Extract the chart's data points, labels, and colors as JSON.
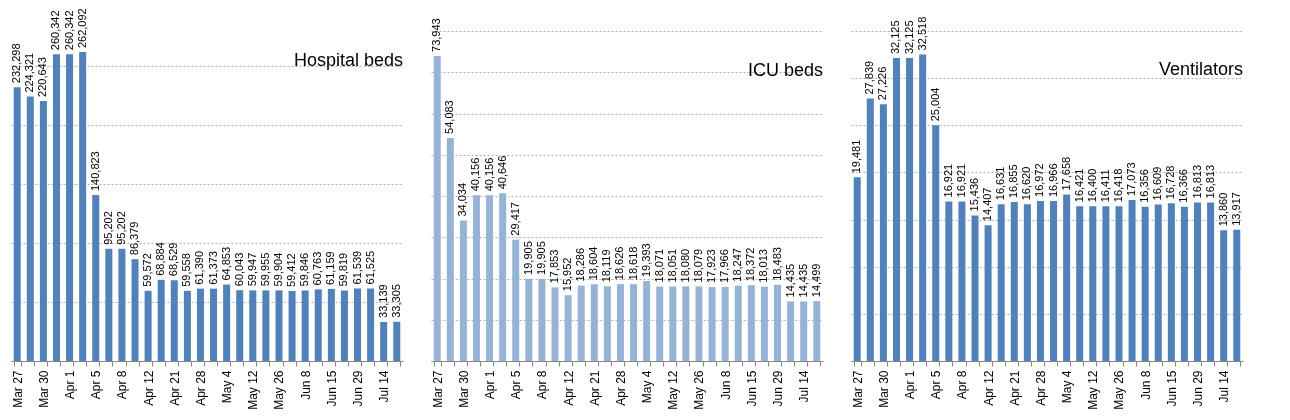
{
  "chart_data": [
    {
      "type": "bar",
      "title": "Hospital beds",
      "categories": [
        "Mar 27",
        null,
        "Mar 30",
        null,
        "Apr 1",
        null,
        "Apr 5",
        null,
        "Apr 8",
        null,
        "Apr 12",
        null,
        "Apr 21",
        null,
        "Apr 28",
        null,
        "May 4",
        null,
        "May 12",
        null,
        "May 26",
        null,
        "Jun 8",
        null,
        "Jun 15",
        null,
        "Jun 29",
        null,
        "Jul 14",
        null
      ],
      "series": [
        {
          "color": "#4f81bd",
          "values": [
            232298,
            224321,
            220643,
            260342,
            260342,
            262092,
            140823,
            95202,
            95202,
            86379,
            59572,
            68884,
            68529,
            59558,
            61390,
            61373,
            64853,
            60043,
            59947,
            59955,
            59904,
            59412,
            59846,
            60763,
            61159,
            59819,
            61539,
            61525,
            33139,
            33305
          ],
          "value_labels": [
            "232,298",
            "224,321",
            "220,643",
            "260,342",
            "260,342",
            "262,092",
            "140,823",
            "95,202",
            "95,202",
            "86,379",
            "59,572",
            "68,884",
            "68,529",
            "59,558",
            "61,390",
            "61,373",
            "64,853",
            "60,043",
            "59,947",
            "59,955",
            "59,904",
            "59,412",
            "59,846",
            "60,763",
            "61,159",
            "59,819",
            "61,539",
            "61,525",
            "33,139",
            "33,305"
          ]
        }
      ],
      "tick_labels": "x",
      "grid": "y"
    },
    {
      "type": "bar",
      "title": "ICU beds",
      "categories": [
        "Mar 27",
        null,
        "Mar 30",
        null,
        "Apr 1",
        null,
        "Apr 5",
        null,
        "Apr 8",
        null,
        "Apr 12",
        null,
        "Apr 21",
        null,
        "Apr 28",
        null,
        "May 4",
        null,
        "May 12",
        null,
        "May 26",
        null,
        "Jun 8",
        null,
        "Jun 15",
        null,
        "Jun 29",
        null,
        "Jul 14",
        null
      ],
      "series": [
        {
          "color": "#95b3d7",
          "values": [
            73943,
            54083,
            34034,
            40156,
            40156,
            40646,
            29417,
            19905,
            19905,
            17853,
            15952,
            18286,
            18604,
            18119,
            18626,
            18618,
            19393,
            18071,
            18051,
            18080,
            18079,
            17923,
            17966,
            18247,
            18372,
            18013,
            18483,
            14435,
            14435,
            14499
          ],
          "value_labels": [
            "73,943",
            "54,083",
            "34,034",
            "40,156",
            "40,156",
            "40,646",
            "29,417",
            "19,905",
            "19,905",
            "17,853",
            "15,952",
            "18,286",
            "18,604",
            "18,119",
            "18,626",
            "18,618",
            "19,393",
            "18,071",
            "18,051",
            "18,080",
            "18,079",
            "17,923",
            "17,966",
            "18,247",
            "18,372",
            "18,013",
            "18,483",
            "14,435",
            "14,435",
            "14,499"
          ]
        }
      ],
      "tick_labels": "x",
      "grid": "y"
    },
    {
      "type": "bar",
      "title": "Ventilators",
      "categories": [
        "Mar 27",
        null,
        "Mar 30",
        null,
        "Apr 1",
        null,
        "Apr 5",
        null,
        "Apr 8",
        null,
        "Apr 12",
        null,
        "Apr 21",
        null,
        "Apr 28",
        null,
        "May 4",
        null,
        "May 12",
        null,
        "May 26",
        null,
        "Jun 8",
        null,
        "Jun 15",
        null,
        "Jun 29",
        null,
        "Jul 14",
        null
      ],
      "series": [
        {
          "color": "#4f81bd",
          "values": [
            19481,
            27839,
            27226,
            32125,
            32125,
            32518,
            25004,
            16921,
            16921,
            15436,
            14407,
            16631,
            16855,
            16620,
            16972,
            16966,
            17658,
            16421,
            16400,
            16411,
            16418,
            17073,
            16356,
            16609,
            16728,
            16366,
            16813,
            16813,
            13860,
            13917
          ],
          "value_labels": [
            "19,481",
            "27,839",
            "27,226",
            "32,125",
            "32,125",
            "32,518",
            "25,004",
            "16,921",
            "16,921",
            "15,436",
            "14,407",
            "16,631",
            "16,855",
            "16,620",
            "16,972",
            "16,966",
            "17,658",
            "16,421",
            "16,400",
            "16,411",
            "16,418",
            "17,073",
            "16,356",
            "16,609",
            "16,728",
            "16,366",
            "16,813",
            "16,813",
            "13,860",
            "13,917"
          ]
        }
      ],
      "tick_labels": "x",
      "grid": "y"
    }
  ]
}
